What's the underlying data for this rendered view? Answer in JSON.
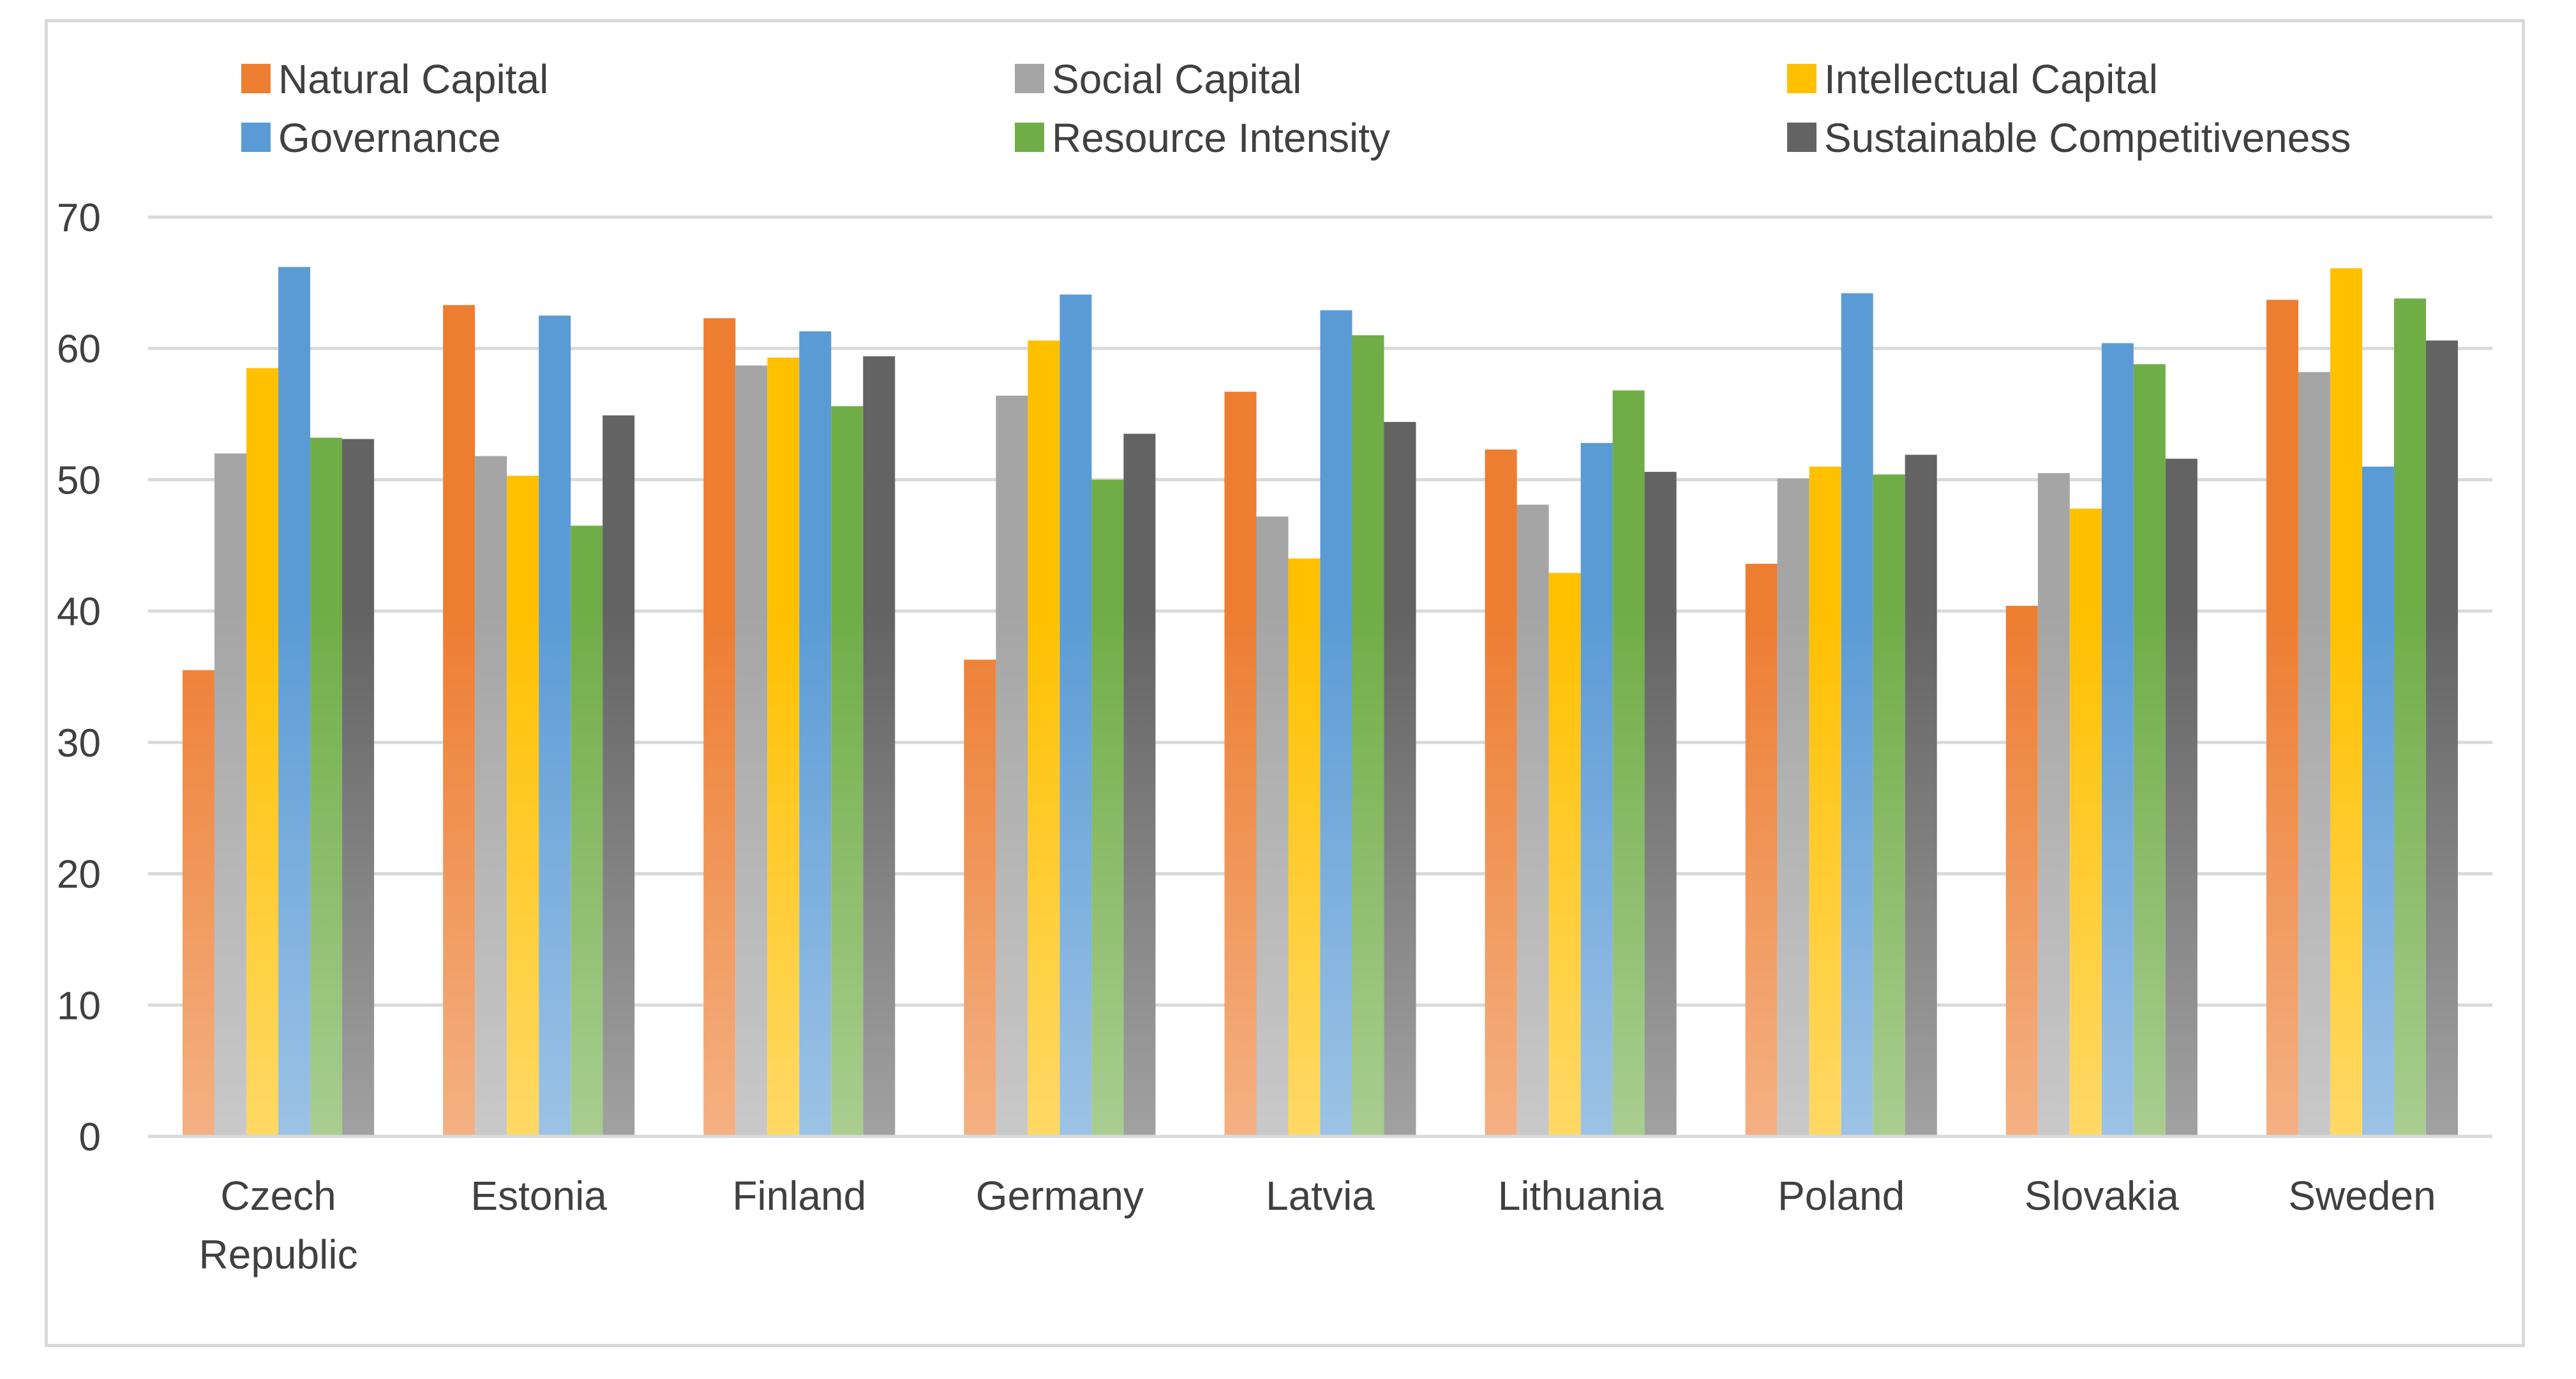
{
  "chart_data": {
    "type": "bar",
    "title": "",
    "xlabel": "",
    "ylabel": "",
    "ylim": [
      0,
      70
    ],
    "yticks": [
      0,
      10,
      20,
      30,
      40,
      50,
      60,
      70
    ],
    "grid": true,
    "legend_position": "top",
    "categories": [
      "Czech Republic",
      "Estonia",
      "Finland",
      "Germany",
      "Latvia",
      "Lithuania",
      "Poland",
      "Slovakia",
      "Sweden"
    ],
    "category_lines": [
      [
        "Czech",
        "Republic"
      ],
      [
        "Estonia"
      ],
      [
        "Finland"
      ],
      [
        "Germany"
      ],
      [
        "Latvia"
      ],
      [
        "Lithuania"
      ],
      [
        "Poland"
      ],
      [
        "Slovakia"
      ],
      [
        "Sweden"
      ]
    ],
    "series": [
      {
        "name": "Natural Capital",
        "color": "#ED7D31",
        "values": [
          35.5,
          63.3,
          62.3,
          36.3,
          56.7,
          52.3,
          43.6,
          40.4,
          63.7
        ]
      },
      {
        "name": "Social Capital",
        "color": "#A5A5A5",
        "values": [
          52.0,
          51.8,
          58.7,
          56.4,
          47.2,
          48.1,
          50.1,
          50.5,
          58.2
        ]
      },
      {
        "name": "Intellectual Capital",
        "color": "#FFC000",
        "values": [
          58.5,
          50.3,
          59.3,
          60.6,
          44.0,
          42.9,
          51.0,
          47.8,
          66.1
        ]
      },
      {
        "name": "Governance",
        "color": "#5B9BD5",
        "values": [
          66.2,
          62.5,
          61.3,
          64.1,
          62.9,
          52.8,
          64.2,
          60.4,
          51.0
        ]
      },
      {
        "name": "Resource Intensity",
        "color": "#70AD47",
        "values": [
          53.2,
          46.5,
          55.6,
          50.0,
          61.0,
          56.8,
          50.4,
          58.8,
          63.8
        ]
      },
      {
        "name": "Sustainable Competitiveness",
        "color": "#636363",
        "values": [
          53.1,
          54.9,
          59.4,
          53.5,
          54.4,
          50.6,
          51.9,
          51.6,
          60.6
        ]
      }
    ]
  }
}
